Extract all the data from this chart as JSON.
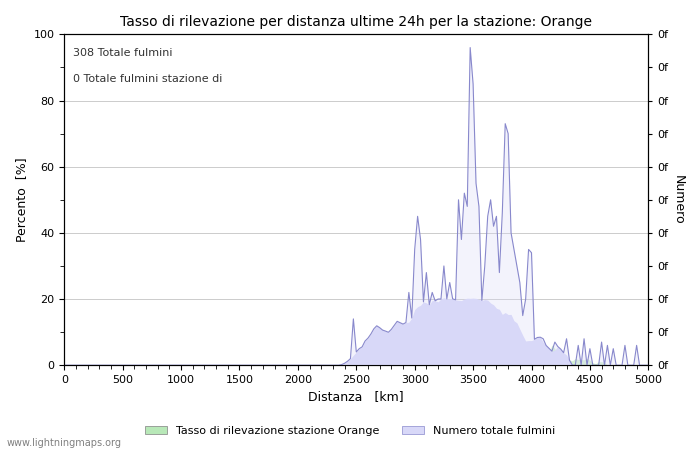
{
  "title": "Tasso di rilevazione per distanza ultime 24h per la stazione: Orange",
  "xlabel": "Distanza   [km]",
  "ylabel_left": "Percento  [%]",
  "ylabel_right": "Numero",
  "annotation_line1": "308 Totale fulmini",
  "annotation_line2": "0 Totale fulmini stazione di",
  "legend_label1": "Tasso di rilevazione stazione Orange",
  "legend_label2": "Numero totale fulmini",
  "watermark": "www.lightningmaps.org",
  "xlim": [
    0,
    5000
  ],
  "ylim_left": [
    0,
    100
  ],
  "xticks": [
    0,
    500,
    1000,
    1500,
    2000,
    2500,
    3000,
    3500,
    4000,
    4500,
    5000
  ],
  "yticks_left": [
    0,
    20,
    40,
    60,
    80,
    100
  ],
  "right_ytick_labels": [
    "0f",
    "0f",
    "0f",
    "0f",
    "0f",
    "0f",
    "0f",
    "0f",
    "0f",
    "0f",
    "0f"
  ],
  "color_green": "#b8e8b8",
  "color_blue_fill": "#d8d8f8",
  "color_blue_line": "#8888cc",
  "background_color": "#ffffff",
  "grid_color": "#cccccc"
}
